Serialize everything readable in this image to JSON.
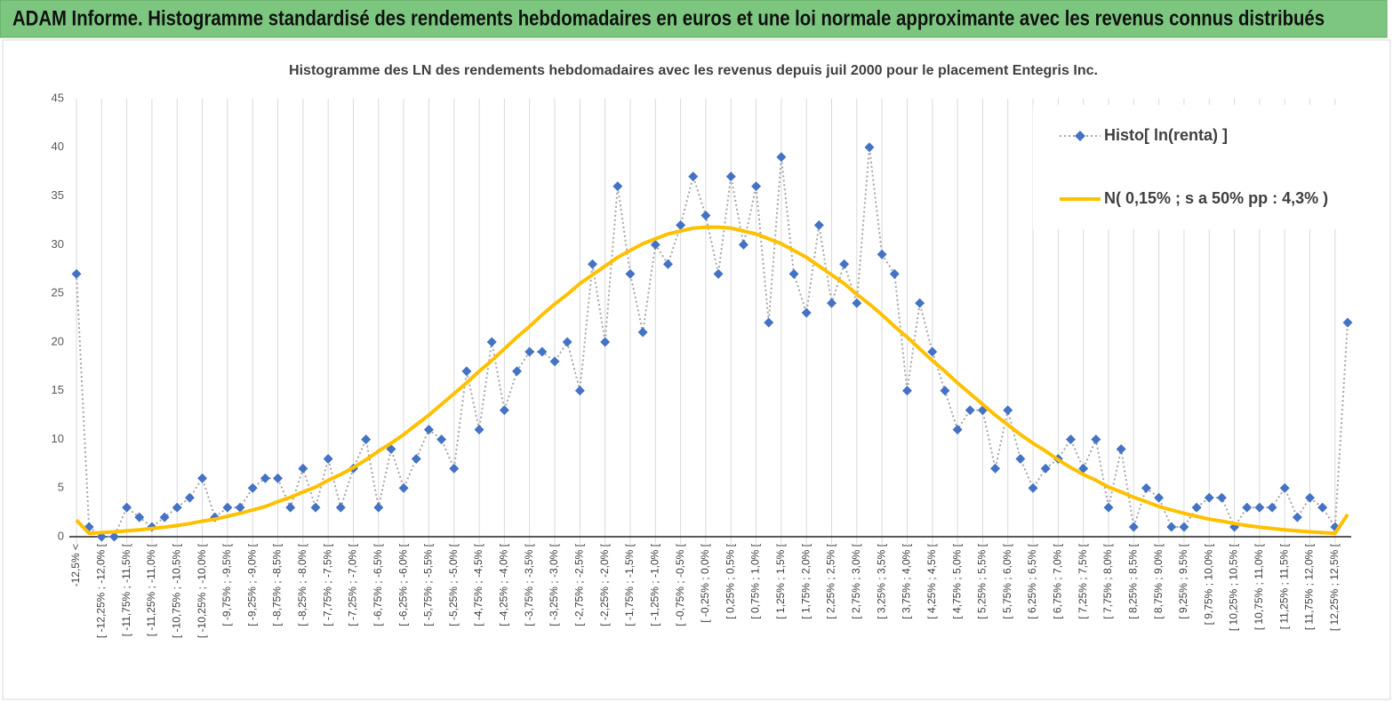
{
  "header": {
    "title": "ADAM Informe. Histogramme standardisé des rendements hebdomadaires en euros et une loi normale approximante avec les revenus connus distribués"
  },
  "chart_data": {
    "type": "line",
    "title": "Histogramme des LN des rendements hebdomadaires avec les revenus depuis juil 2000 pour le placement Entegris Inc.",
    "categories": [
      "-12,5% <",
      null,
      "[ -12,25% ; -12,0% [",
      null,
      "[ -11,75% ; -11,5% [",
      null,
      "[ -11,25% ; -11,0% [",
      null,
      "[ -10,75% ; -10,5% [",
      null,
      "[ -10,25% ; -10,0% [",
      null,
      "[ -9,75% ; -9,5% [",
      null,
      "[ -9,25% ; -9,0% [",
      null,
      "[ -8,75% ; -8,5% [",
      null,
      "[ -8,25% ; -8,0% [",
      null,
      "[ -7,75% ; -7,5% [",
      null,
      "[ -7,25% ; -7,0% [",
      null,
      "[ -6,75% ; -6,5% [",
      null,
      "[ -6,25% ; -6,0% [",
      null,
      "[ -5,75% ; -5,5% [",
      null,
      "[ -5,25% ; -5,0% [",
      null,
      "[ -4,75% ; -4,5% [",
      null,
      "[ -4,25% ; -4,0% [",
      null,
      "[ -3,75% ; -3,5% [",
      null,
      "[ -3,25% ; -3,0% [",
      null,
      "[ -2,75% ; -2,5% [",
      null,
      "[ -2,25% ; -2,0% [",
      null,
      "[ -1,75% ; -1,5% [",
      null,
      "[ -1,25% ; -1,0% [",
      null,
      "[ -0,75% ; -0,5% [",
      null,
      "[ -0,25% ; 0,0% [",
      null,
      "[ 0,25% ; 0,5% [",
      null,
      "[ 0,75% ; 1,0% [",
      null,
      "[ 1,25% ; 1,5% [",
      null,
      "[ 1,75% ; 2,0% [",
      null,
      "[ 2,25% ; 2,5% [",
      null,
      "[ 2,75% ; 3,0% [",
      null,
      "[ 3,25% ; 3,5% [",
      null,
      "[ 3,75% ; 4,0% [",
      null,
      "[ 4,25% ; 4,5% [",
      null,
      "[ 4,75% ; 5,0% [",
      null,
      "[ 5,25% ; 5,5% [",
      null,
      "[ 5,75% ; 6,0% [",
      null,
      "[ 6,25% ; 6,5% [",
      null,
      "[ 6,75% ; 7,0% [",
      null,
      "[ 7,25% ; 7,5% [",
      null,
      "[ 7,75% ; 8,0% [",
      null,
      "[ 8,25% ; 8,5% [",
      null,
      "[ 8,75% ; 9,0% [",
      null,
      "[ 9,25% ; 9,5% [",
      null,
      "[ 9,75% ; 10,0% [",
      null,
      "[ 10,25% ; 10,5% [",
      null,
      "[ 10,75% ; 11,0% [",
      null,
      "[ 11,25% ; 11,5% [",
      null,
      "[ 11,75% ; 12,0% [",
      null,
      "[ 12,25% ; 12,5% [",
      null
    ],
    "series": [
      {
        "name": "Histo[ ln(renta) ]",
        "color": "#4472c4",
        "line_color": "#a6a6a6",
        "line_style": "dotted",
        "marker": "diamond",
        "values": [
          27,
          1,
          0,
          0,
          3,
          2,
          1,
          2,
          3,
          4,
          6,
          2,
          3,
          3,
          5,
          6,
          6,
          3,
          7,
          3,
          8,
          3,
          7,
          10,
          3,
          9,
          5,
          8,
          11,
          10,
          7,
          17,
          11,
          20,
          13,
          17,
          19,
          19,
          18,
          20,
          15,
          28,
          20,
          36,
          27,
          21,
          30,
          28,
          32,
          37,
          33,
          27,
          37,
          30,
          36,
          22,
          39,
          27,
          23,
          32,
          24,
          28,
          24,
          40,
          29,
          27,
          15,
          24,
          19,
          15,
          11,
          13,
          13,
          7,
          13,
          8,
          5,
          7,
          8,
          10,
          7,
          10,
          3,
          9,
          1,
          5,
          4,
          1,
          1,
          3,
          4,
          4,
          1,
          3,
          3,
          3,
          5,
          2,
          4,
          3,
          1,
          22
        ]
      },
      {
        "name": "N( 0,15% ; s a 50% pp : 4,3% )",
        "color": "#ffc000",
        "line_style": "solid",
        "marker": "none",
        "values": [
          1.7,
          0.35,
          0.42,
          0.5,
          0.6,
          0.71,
          0.84,
          0.98,
          1.15,
          1.35,
          1.6,
          1.8,
          2.1,
          2.4,
          2.75,
          3.1,
          3.6,
          4.05,
          4.6,
          5.1,
          5.8,
          6.4,
          7.1,
          7.9,
          8.8,
          9.6,
          10.5,
          11.5,
          12.5,
          13.6,
          14.7,
          15.8,
          17.0,
          18.1,
          19.3,
          20.5,
          21.6,
          22.8,
          23.9,
          24.9,
          26.0,
          26.9,
          27.8,
          28.7,
          29.4,
          30.1,
          30.6,
          31.1,
          31.4,
          31.7,
          31.8,
          31.8,
          31.7,
          31.4,
          31.1,
          30.6,
          30.1,
          29.4,
          28.7,
          27.8,
          26.9,
          26.0,
          24.9,
          23.9,
          22.8,
          21.6,
          20.5,
          19.3,
          18.1,
          17.0,
          15.8,
          14.7,
          13.6,
          12.5,
          11.5,
          10.5,
          9.6,
          8.8,
          7.9,
          7.1,
          6.4,
          5.8,
          5.1,
          4.6,
          4.05,
          3.6,
          3.1,
          2.75,
          2.4,
          2.1,
          1.8,
          1.6,
          1.35,
          1.15,
          0.98,
          0.84,
          0.71,
          0.6,
          0.5,
          0.42,
          0.35,
          2.3
        ]
      }
    ],
    "ylim": [
      0,
      45
    ],
    "yticks": [
      0,
      5,
      10,
      15,
      20,
      25,
      30,
      35,
      40,
      45
    ],
    "grid": "vertical",
    "legend": "upper right"
  }
}
